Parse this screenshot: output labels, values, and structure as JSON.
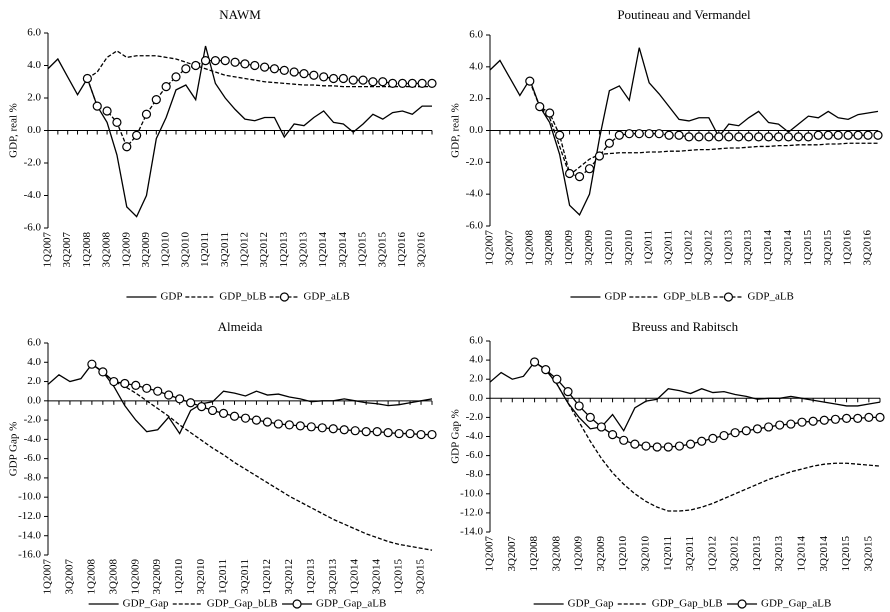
{
  "chart_data": [
    {
      "type": "line",
      "title": "NAWM",
      "y_label": "GDP, real %",
      "categories": [
        "1Q2007",
        null,
        "3Q2007",
        null,
        "1Q2008",
        null,
        "3Q2008",
        null,
        "1Q2009",
        null,
        "3Q2009",
        null,
        "1Q2010",
        null,
        "3Q2010",
        null,
        "1Q2011",
        null,
        "3Q2011",
        null,
        "1Q2012",
        null,
        "3Q2012",
        null,
        "1Q2013",
        null,
        "3Q2013",
        null,
        "1Q2014",
        null,
        "3Q2014",
        null,
        "1Q2015",
        null,
        "3Q2015",
        null,
        "1Q2016",
        null,
        "3Q2016",
        null
      ],
      "ylim": [
        -6,
        6
      ],
      "yticks": [
        {
          "value": 6,
          "label": "6.0"
        },
        {
          "value": 4,
          "label": "4.0"
        },
        {
          "value": 2,
          "label": "2.0"
        },
        {
          "value": 0,
          "label": "0.0"
        },
        {
          "value": -2,
          "label": "-2.0"
        },
        {
          "value": -4,
          "label": "-4.0"
        },
        {
          "value": -6,
          "label": "-6.0"
        }
      ],
      "series": [
        {
          "name": "GDP",
          "color": "#000000",
          "line_style": "solid",
          "marker": "none",
          "values": [
            3.8,
            4.4,
            3.3,
            2.2,
            3.2,
            1.5,
            0.5,
            -1.5,
            -4.7,
            -5.3,
            -4.0,
            -0.5,
            0.8,
            2.5,
            2.8,
            1.9,
            5.2,
            2.9,
            2.0,
            1.3,
            0.7,
            0.6,
            0.8,
            0.8,
            -0.4,
            0.4,
            0.3,
            0.8,
            1.2,
            0.5,
            0.4,
            -0.1,
            0.4,
            1.0,
            0.7,
            1.1,
            1.2,
            1.0,
            1.5,
            1.5
          ]
        },
        {
          "name": "GDP_bLB",
          "color": "#000000",
          "line_style": "dashed",
          "marker": "none",
          "values": [
            null,
            null,
            null,
            null,
            3.2,
            3.6,
            4.5,
            4.9,
            4.5,
            4.6,
            4.6,
            4.6,
            4.5,
            4.4,
            4.2,
            4.0,
            3.8,
            3.6,
            3.4,
            3.3,
            3.2,
            3.1,
            3.0,
            2.95,
            2.9,
            2.85,
            2.8,
            2.8,
            2.75,
            2.75,
            2.7,
            2.7,
            2.7,
            2.7,
            2.7,
            2.7,
            2.7,
            2.7,
            2.7,
            2.7
          ]
        },
        {
          "name": "GDP_aLB",
          "color": "#000000",
          "line_style": "dashed",
          "marker": "circle",
          "values": [
            null,
            null,
            null,
            null,
            3.2,
            1.5,
            1.2,
            0.5,
            -1.0,
            -0.3,
            1.0,
            1.9,
            2.7,
            3.3,
            3.8,
            4.0,
            4.3,
            4.3,
            4.3,
            4.2,
            4.1,
            4.0,
            3.9,
            3.8,
            3.7,
            3.6,
            3.5,
            3.4,
            3.3,
            3.2,
            3.2,
            3.1,
            3.1,
            3.0,
            3.0,
            2.9,
            2.9,
            2.9,
            2.9,
            2.9
          ]
        }
      ]
    },
    {
      "type": "line",
      "title": "Poutineau and Vermandel",
      "y_label": "GDP, real %",
      "categories": [
        "1Q2007",
        null,
        "3Q2007",
        null,
        "1Q2008",
        null,
        "3Q2008",
        null,
        "1Q2009",
        null,
        "3Q2009",
        null,
        "1Q2010",
        null,
        "3Q2010",
        null,
        "1Q2011",
        null,
        "3Q2011",
        null,
        "1Q2012",
        null,
        "3Q2012",
        null,
        "1Q2013",
        null,
        "3Q2013",
        null,
        "1Q2014",
        null,
        "3Q2014",
        null,
        "1Q2015",
        null,
        "3Q2015",
        null,
        "1Q2016",
        null,
        "3Q2016",
        null
      ],
      "ylim": [
        -6,
        6
      ],
      "yticks": [
        {
          "value": 6,
          "label": "6.0"
        },
        {
          "value": 4,
          "label": "4.0"
        },
        {
          "value": 2,
          "label": "2.0"
        },
        {
          "value": 0,
          "label": "0.0"
        },
        {
          "value": -2,
          "label": "-2.0"
        },
        {
          "value": -4,
          "label": "-4.0"
        },
        {
          "value": -6,
          "label": "-6.0"
        }
      ],
      "series": [
        {
          "name": "GDP",
          "color": "#000000",
          "line_style": "solid",
          "marker": "none",
          "values": [
            3.8,
            4.4,
            3.3,
            2.2,
            3.2,
            1.5,
            0.5,
            -1.5,
            -4.7,
            -5.3,
            -4.0,
            -0.5,
            2.5,
            2.8,
            1.9,
            5.2,
            3.0,
            2.3,
            1.5,
            0.7,
            0.6,
            0.8,
            0.8,
            -0.4,
            0.4,
            0.3,
            0.8,
            1.2,
            0.5,
            0.4,
            -0.1,
            0.4,
            0.9,
            0.8,
            1.2,
            0.8,
            0.7,
            1.0,
            1.1,
            1.2
          ]
        },
        {
          "name": "GDP_bLB",
          "color": "#000000",
          "line_style": "dashed",
          "marker": "none",
          "values": [
            null,
            null,
            null,
            null,
            3.1,
            1.5,
            0.8,
            -1.0,
            -2.8,
            -2.3,
            -1.8,
            -1.5,
            -1.45,
            -1.4,
            -1.4,
            -1.4,
            -1.35,
            -1.35,
            -1.3,
            -1.3,
            -1.25,
            -1.2,
            -1.2,
            -1.15,
            -1.1,
            -1.1,
            -1.05,
            -1.0,
            -1.0,
            -0.95,
            -0.95,
            -0.9,
            -0.9,
            -0.9,
            -0.85,
            -0.85,
            -0.8,
            -0.8,
            -0.8,
            -0.8
          ]
        },
        {
          "name": "GDP_aLB",
          "color": "#000000",
          "line_style": "dashed",
          "marker": "circle",
          "values": [
            null,
            null,
            null,
            null,
            3.1,
            1.5,
            1.1,
            -0.3,
            -2.7,
            -2.9,
            -2.4,
            -1.6,
            -0.8,
            -0.3,
            -0.2,
            -0.2,
            -0.2,
            -0.2,
            -0.3,
            -0.3,
            -0.4,
            -0.4,
            -0.4,
            -0.4,
            -0.4,
            -0.4,
            -0.4,
            -0.4,
            -0.4,
            -0.4,
            -0.4,
            -0.4,
            -0.4,
            -0.3,
            -0.3,
            -0.3,
            -0.3,
            -0.3,
            -0.3,
            -0.3
          ]
        }
      ]
    },
    {
      "type": "line",
      "title": "Almeida",
      "y_label": "GDP Gap %",
      "categories": [
        "1Q2007",
        null,
        "3Q2007",
        null,
        "1Q2008",
        null,
        "3Q2008",
        null,
        "1Q2009",
        null,
        "3Q2009",
        null,
        "1Q2010",
        null,
        "3Q2010",
        null,
        "1Q2011",
        null,
        "3Q2011",
        null,
        "1Q2012",
        null,
        "3Q2012",
        null,
        "1Q2013",
        null,
        "3Q2013",
        null,
        "1Q2014",
        null,
        "3Q2014",
        null,
        "1Q2015",
        null,
        "3Q2015",
        null
      ],
      "ylim": [
        -16,
        6
      ],
      "yticks": [
        {
          "value": 6,
          "label": "6.0"
        },
        {
          "value": 4,
          "label": "4.0"
        },
        {
          "value": 2,
          "label": "2.0"
        },
        {
          "value": 0,
          "label": "0.0"
        },
        {
          "value": -2,
          "label": "-2.0"
        },
        {
          "value": -4,
          "label": "-4.0"
        },
        {
          "value": -6,
          "label": "-6.0"
        },
        {
          "value": -8,
          "label": "-8.0"
        },
        {
          "value": -10,
          "label": "-10.0"
        },
        {
          "value": -12,
          "label": "-12.0"
        },
        {
          "value": -14,
          "label": "-14.0"
        },
        {
          "value": -16,
          "label": "-16.0"
        }
      ],
      "series": [
        {
          "name": "GDP_Gap",
          "color": "#000000",
          "line_style": "solid",
          "marker": "none",
          "values": [
            1.7,
            2.7,
            2.0,
            2.3,
            3.8,
            3.0,
            1.5,
            -0.5,
            -2.0,
            -3.2,
            -3.0,
            -1.7,
            -3.4,
            -1.0,
            -0.3,
            -0.1,
            1.0,
            0.8,
            0.5,
            1.0,
            0.6,
            0.7,
            0.4,
            0.2,
            -0.1,
            0.0,
            0.0,
            0.2,
            0.0,
            -0.2,
            -0.3,
            -0.5,
            -0.4,
            -0.2,
            0.0,
            0.2
          ]
        },
        {
          "name": "GDP_Gap_bLB",
          "color": "#000000",
          "line_style": "dashed",
          "marker": "none",
          "values": [
            null,
            null,
            null,
            null,
            3.8,
            3.0,
            2.0,
            1.5,
            0.8,
            0.0,
            -0.8,
            -1.6,
            -2.5,
            -3.3,
            -4.1,
            -4.9,
            -5.6,
            -6.4,
            -7.1,
            -7.8,
            -8.5,
            -9.2,
            -9.9,
            -10.5,
            -11.1,
            -11.7,
            -12.3,
            -12.8,
            -13.3,
            -13.8,
            -14.2,
            -14.6,
            -14.9,
            -15.1,
            -15.3,
            -15.5
          ]
        },
        {
          "name": "GDP_Gap_aLB",
          "color": "#000000",
          "line_style": "solid",
          "marker": "circle",
          "values": [
            null,
            null,
            null,
            null,
            3.8,
            3.0,
            2.0,
            1.8,
            1.6,
            1.3,
            1.0,
            0.6,
            0.2,
            -0.2,
            -0.6,
            -1.0,
            -1.3,
            -1.6,
            -1.8,
            -2.0,
            -2.2,
            -2.4,
            -2.5,
            -2.6,
            -2.7,
            -2.8,
            -2.9,
            -3.0,
            -3.1,
            -3.2,
            -3.2,
            -3.3,
            -3.4,
            -3.4,
            -3.5,
            -3.5
          ]
        }
      ]
    },
    {
      "type": "line",
      "title": "Breuss and Rabitsch",
      "y_label": "GDP Gap %",
      "categories": [
        "1Q2007",
        null,
        "3Q2007",
        null,
        "1Q2008",
        null,
        "3Q2008",
        null,
        "1Q2009",
        null,
        "3Q2009",
        null,
        "1Q2010",
        null,
        "3Q2010",
        null,
        "1Q2011",
        null,
        "3Q2011",
        null,
        "1Q2012",
        null,
        "3Q2012",
        null,
        "1Q2013",
        null,
        "3Q2013",
        null,
        "1Q2014",
        null,
        "3Q2014",
        null,
        "1Q2015",
        null,
        "3Q2015",
        null
      ],
      "ylim": [
        -14,
        6
      ],
      "yticks": [
        {
          "value": 6,
          "label": "6.0"
        },
        {
          "value": 4,
          "label": "4.0"
        },
        {
          "value": 2,
          "label": "2.0"
        },
        {
          "value": 0,
          "label": "0.0"
        },
        {
          "value": -2,
          "label": "-2.0"
        },
        {
          "value": -4,
          "label": "-4.0"
        },
        {
          "value": -6,
          "label": "-6.0"
        },
        {
          "value": -8,
          "label": "-8.0"
        },
        {
          "value": -10,
          "label": "-10.0"
        },
        {
          "value": -12,
          "label": "-12.0"
        },
        {
          "value": -14,
          "label": "-14.0"
        }
      ],
      "series": [
        {
          "name": "GDP_Gap",
          "color": "#000000",
          "line_style": "solid",
          "marker": "none",
          "values": [
            1.7,
            2.7,
            2.0,
            2.3,
            3.8,
            3.0,
            1.5,
            -0.5,
            -2.0,
            -3.2,
            -3.0,
            -1.7,
            -3.4,
            -1.0,
            -0.3,
            -0.1,
            1.0,
            0.8,
            0.5,
            1.0,
            0.6,
            0.7,
            0.4,
            0.2,
            -0.1,
            0.0,
            0.0,
            0.2,
            0.0,
            -0.2,
            -0.4,
            -0.6,
            -0.8,
            -0.8,
            -0.6,
            -0.4
          ]
        },
        {
          "name": "GDP_Gap_bLB",
          "color": "#000000",
          "line_style": "dashed",
          "marker": "none",
          "values": [
            null,
            null,
            null,
            null,
            3.8,
            3.0,
            1.5,
            -0.5,
            -2.5,
            -4.5,
            -6.3,
            -7.8,
            -9.0,
            -10.0,
            -10.8,
            -11.4,
            -11.8,
            -11.8,
            -11.7,
            -11.4,
            -11.0,
            -10.5,
            -10.0,
            -9.5,
            -9.0,
            -8.5,
            -8.1,
            -7.7,
            -7.4,
            -7.1,
            -6.9,
            -6.8,
            -6.8,
            -6.9,
            -7.0,
            -7.1
          ]
        },
        {
          "name": "GDP_Gap_aLB",
          "color": "#000000",
          "line_style": "solid",
          "marker": "circle",
          "values": [
            null,
            null,
            null,
            null,
            3.8,
            3.0,
            2.0,
            0.7,
            -0.8,
            -2.0,
            -3.0,
            -3.8,
            -4.4,
            -4.8,
            -5.0,
            -5.1,
            -5.1,
            -5.0,
            -4.8,
            -4.5,
            -4.2,
            -3.9,
            -3.6,
            -3.4,
            -3.2,
            -3.0,
            -2.8,
            -2.7,
            -2.5,
            -2.4,
            -2.3,
            -2.2,
            -2.1,
            -2.1,
            -2.0,
            -2.0
          ]
        }
      ]
    }
  ]
}
